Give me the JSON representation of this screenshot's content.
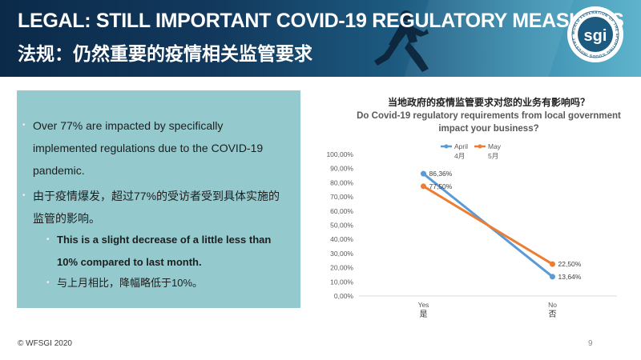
{
  "header": {
    "title_en": "LEGAL: STILL IMPORTANT COVID-19 REGULATORY MEASURES",
    "title_zh": "法规：仍然重要的疫情相关监管要求",
    "logo_text": "sgi",
    "logo_ring_text": "WORLD FEDERATION OF THE SPORTING GOODS INDUSTRY"
  },
  "bullets": {
    "b1": "Over 77% are impacted by specifically implemented regulations due to the COVID-19 pandemic.",
    "b2": "由于疫情爆发，超过77%的受访者受到具体实施的监管的影响。",
    "b3": "This is a slight decrease of a little less than  10% compared to last month.",
    "b4": "与上月相比，降幅略低于10%。",
    "bullet_char": "•"
  },
  "chart_data": {
    "type": "line",
    "title_zh": "当地政府的疫情监管要求对您的业务有影响吗？",
    "title_en": "Do Covid-19 regulatory requirements from local government impact your business?",
    "categories": [
      "Yes",
      "No"
    ],
    "categories_zh": [
      "是",
      "否"
    ],
    "y_tick_labels": [
      "0,00%",
      "10,00%",
      "20,00%",
      "30,00%",
      "40,00%",
      "50,00%",
      "60,00%",
      "70,00%",
      "80,00%",
      "90,00%",
      "100,00%"
    ],
    "ylim": [
      0,
      100
    ],
    "series": [
      {
        "name": "April",
        "name_zh": "4月",
        "color": "#5b9bd5",
        "values": [
          86.36,
          13.64
        ],
        "labels": [
          "86,36%",
          "13,64%"
        ]
      },
      {
        "name": "May",
        "name_zh": "5月",
        "color": "#ed7d31",
        "values": [
          77.5,
          22.5
        ],
        "labels": [
          "77,50%",
          "22,50%"
        ]
      }
    ],
    "legend_position": "top-right",
    "grid": false
  },
  "footer": {
    "copyright": "© WFSGI 2020",
    "page_number": "9"
  }
}
